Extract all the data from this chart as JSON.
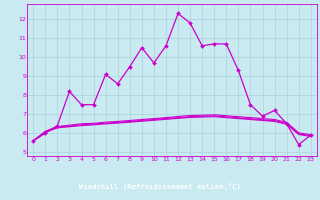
{
  "xlabel": "Windchill (Refroidissement éolien,°C)",
  "bg_color": "#c8eaf0",
  "grid_color": "#aad4dc",
  "line_color": "#cc00cc",
  "label_bg_color": "#9900aa",
  "xlim": [
    -0.5,
    23.5
  ],
  "ylim": [
    4.8,
    12.8
  ],
  "yticks": [
    5,
    6,
    7,
    8,
    9,
    10,
    11,
    12
  ],
  "xticks": [
    0,
    1,
    2,
    3,
    4,
    5,
    6,
    7,
    8,
    9,
    10,
    11,
    12,
    13,
    14,
    15,
    16,
    17,
    18,
    19,
    20,
    21,
    22,
    23
  ],
  "line1_x": [
    0,
    1,
    2,
    3,
    4,
    5,
    6,
    7,
    8,
    9,
    10,
    11,
    12,
    13,
    14,
    15,
    16,
    17,
    18,
    19,
    20,
    21,
    22,
    23
  ],
  "line1_y": [
    5.6,
    6.0,
    6.4,
    8.2,
    7.5,
    7.5,
    9.1,
    8.6,
    9.5,
    10.5,
    9.7,
    10.6,
    12.3,
    11.8,
    10.6,
    10.7,
    10.7,
    9.3,
    7.5,
    6.9,
    7.2,
    6.5,
    5.4,
    5.9
  ],
  "line2_x": [
    0,
    1,
    2,
    3,
    4,
    5,
    6,
    7,
    8,
    9,
    10,
    11,
    12,
    13,
    14,
    15,
    16,
    17,
    18,
    19,
    20,
    21,
    22,
    23
  ],
  "line2_y": [
    5.6,
    6.1,
    6.35,
    6.42,
    6.5,
    6.52,
    6.58,
    6.62,
    6.67,
    6.72,
    6.77,
    6.82,
    6.88,
    6.93,
    6.95,
    6.97,
    6.92,
    6.87,
    6.82,
    6.77,
    6.72,
    6.57,
    6.02,
    5.92
  ],
  "line3_x": [
    0,
    1,
    2,
    3,
    4,
    5,
    6,
    7,
    8,
    9,
    10,
    11,
    12,
    13,
    14,
    15,
    16,
    17,
    18,
    19,
    20,
    21,
    22,
    23
  ],
  "line3_y": [
    5.6,
    6.08,
    6.32,
    6.38,
    6.44,
    6.48,
    6.53,
    6.57,
    6.62,
    6.67,
    6.72,
    6.77,
    6.82,
    6.87,
    6.89,
    6.91,
    6.86,
    6.81,
    6.76,
    6.71,
    6.66,
    6.51,
    5.97,
    5.87
  ],
  "line4_x": [
    0,
    1,
    2,
    3,
    4,
    5,
    6,
    7,
    8,
    9,
    10,
    11,
    12,
    13,
    14,
    15,
    16,
    17,
    18,
    19,
    20,
    21,
    22,
    23
  ],
  "line4_y": [
    5.6,
    6.05,
    6.28,
    6.34,
    6.4,
    6.44,
    6.49,
    6.53,
    6.58,
    6.63,
    6.68,
    6.73,
    6.78,
    6.83,
    6.85,
    6.87,
    6.82,
    6.77,
    6.72,
    6.67,
    6.62,
    6.47,
    5.93,
    5.83
  ]
}
